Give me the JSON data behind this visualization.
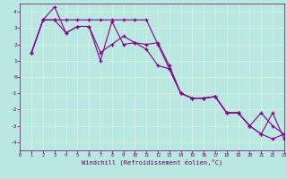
{
  "xlabel": "Windchill (Refroidissement éolien,°C)",
  "bg_color": "#b8e8e0",
  "grid_color": "#d0f0e8",
  "line_color": "#880088",
  "tick_color": "#660066",
  "xlim": [
    0,
    23
  ],
  "ylim": [
    -4.5,
    4.5
  ],
  "xticks": [
    0,
    1,
    2,
    3,
    4,
    5,
    6,
    7,
    8,
    9,
    10,
    11,
    12,
    13,
    14,
    15,
    16,
    17,
    18,
    19,
    20,
    21,
    22,
    23
  ],
  "yticks": [
    -4,
    -3,
    -2,
    -1,
    0,
    1,
    2,
    3,
    4
  ],
  "s1_x": [
    1,
    2,
    3,
    4,
    5,
    6,
    7,
    8,
    9,
    10,
    11,
    12,
    13,
    14,
    15,
    16,
    17,
    18,
    19,
    20,
    21,
    22,
    23
  ],
  "s1_y": [
    1.5,
    3.5,
    4.3,
    2.7,
    3.1,
    3.1,
    1.0,
    3.4,
    2.0,
    2.1,
    2.0,
    2.1,
    0.7,
    -1.0,
    -1.3,
    -1.3,
    -1.2,
    -2.2,
    -2.2,
    -3.0,
    -3.5,
    -3.8,
    -3.5
  ],
  "s2_x": [
    1,
    2,
    3,
    4,
    5,
    6,
    7,
    8,
    9,
    10,
    11,
    12,
    13,
    14,
    15,
    16,
    17,
    18,
    19,
    20,
    21,
    22,
    23
  ],
  "s2_y": [
    1.5,
    3.5,
    3.5,
    3.5,
    3.5,
    3.5,
    3.5,
    3.5,
    3.5,
    3.5,
    3.5,
    2.0,
    0.5,
    -1.0,
    -1.3,
    -1.3,
    -1.2,
    -2.2,
    -2.2,
    -3.0,
    -2.2,
    -3.0,
    -3.5
  ],
  "s3_x": [
    1,
    2,
    3,
    4,
    5,
    6,
    7,
    8,
    9,
    10,
    11,
    12,
    13,
    14,
    15,
    16,
    17,
    18,
    19,
    20,
    21,
    22,
    23
  ],
  "s3_y": [
    1.5,
    3.5,
    3.5,
    2.7,
    3.1,
    3.1,
    1.5,
    2.0,
    2.5,
    2.1,
    1.7,
    0.7,
    0.5,
    -1.0,
    -1.3,
    -1.3,
    -1.2,
    -2.2,
    -2.2,
    -3.0,
    -3.5,
    -2.2,
    -3.8
  ]
}
